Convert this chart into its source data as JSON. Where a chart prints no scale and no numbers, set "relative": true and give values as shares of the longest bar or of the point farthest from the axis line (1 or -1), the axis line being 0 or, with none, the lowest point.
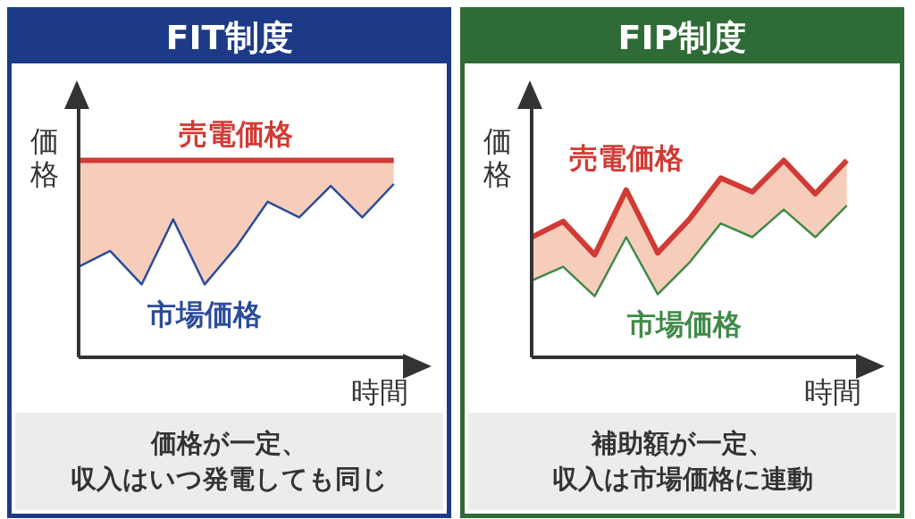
{
  "chart_data": [
    {
      "type": "line",
      "title": "FIT制度",
      "xlabel": "時間",
      "ylabel": "価格",
      "relative": true,
      "legend": false,
      "grid": false,
      "marker": "none",
      "categories": [
        null,
        null,
        null,
        null,
        null,
        null,
        null,
        null,
        null,
        null,
        null
      ],
      "series": [
        {
          "name": "売電価格",
          "color": "#d13a35",
          "values": [
            1,
            1,
            1,
            1,
            1,
            1,
            1,
            1,
            1,
            1,
            1
          ],
          "lower": [
            0.46,
            0.54,
            0.37,
            0.7,
            0.37,
            0.56,
            0.79,
            0.71,
            0.87,
            0.71,
            0.88
          ],
          "upper": [
            1,
            1,
            1,
            1,
            1,
            1,
            1,
            1,
            1,
            1,
            1
          ]
        },
        {
          "name": "市場価格",
          "color": "#2b4c9b",
          "values": [
            0.46,
            0.54,
            0.37,
            0.7,
            0.37,
            0.56,
            0.79,
            0.71,
            0.87,
            0.71,
            0.88
          ]
        }
      ],
      "annotations": [
        "価格が一定、",
        "収入はいつ発電しても同じ"
      ]
    },
    {
      "type": "line",
      "title": "FIP制度",
      "xlabel": "時間",
      "ylabel": "価格",
      "relative": true,
      "legend": false,
      "grid": false,
      "marker": "none",
      "categories": [
        null,
        null,
        null,
        null,
        null,
        null,
        null,
        null,
        null,
        null,
        null
      ],
      "series": [
        {
          "name": "売電価格",
          "color": "#d13a35",
          "values": [
            0.61,
            0.69,
            0.52,
            0.85,
            0.53,
            0.7,
            0.91,
            0.84,
            1,
            0.83,
            1
          ],
          "lower": [
            0.39,
            0.46,
            0.31,
            0.61,
            0.32,
            0.48,
            0.68,
            0.61,
            0.75,
            0.61,
            0.77
          ],
          "upper": [
            0.61,
            0.69,
            0.52,
            0.85,
            0.53,
            0.7,
            0.91,
            0.84,
            1,
            0.83,
            1
          ]
        },
        {
          "name": "市場価格",
          "color": "#3f8a48",
          "values": [
            0.39,
            0.46,
            0.31,
            0.61,
            0.32,
            0.48,
            0.68,
            0.61,
            0.75,
            0.61,
            0.77
          ]
        }
      ],
      "annotations": [
        "補助額が一定、",
        "収入は市場価格に連動"
      ]
    }
  ]
}
